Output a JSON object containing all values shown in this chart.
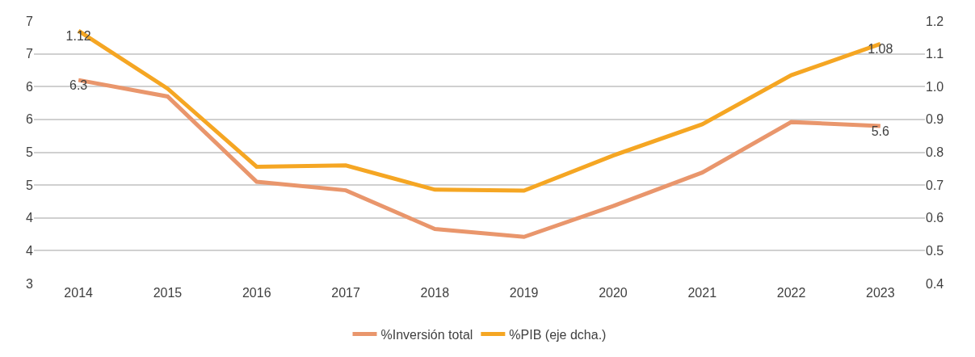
{
  "chart_data": {
    "type": "line",
    "categories": [
      "2014",
      "2015",
      "2016",
      "2017",
      "2018",
      "2019",
      "2020",
      "2021",
      "2022",
      "2023"
    ],
    "series": [
      {
        "name": "%Inversión total",
        "color": "#e9966c",
        "values": [
          6.3,
          6.05,
          4.75,
          4.62,
          4.03,
          3.91,
          4.38,
          4.89,
          5.66,
          5.6
        ],
        "value_labels": [
          "6.3",
          null,
          null,
          null,
          null,
          null,
          null,
          null,
          null,
          "5.6"
        ]
      },
      {
        "name": "%PIB (eje dcha.)",
        "color": "#f5a623",
        "axis": "y2",
        "values": [
          1.12,
          0.944,
          0.706,
          0.71,
          0.636,
          0.633,
          0.74,
          0.835,
          0.985,
          1.08
        ],
        "value_labels": [
          "1.12",
          null,
          null,
          null,
          null,
          null,
          null,
          null,
          null,
          "1.08"
        ]
      }
    ],
    "ylim": [
      3.2,
      7.2
    ],
    "yticks": [
      {
        "value": 3.2,
        "label": "3"
      },
      {
        "value": 3.7,
        "label": "4"
      },
      {
        "value": 4.2,
        "label": "4"
      },
      {
        "value": 4.7,
        "label": "5"
      },
      {
        "value": 5.2,
        "label": "5"
      },
      {
        "value": 5.7,
        "label": "6"
      },
      {
        "value": 6.2,
        "label": "6"
      },
      {
        "value": 6.7,
        "label": "7"
      },
      {
        "value": 7.2,
        "label": "7"
      }
    ],
    "y2lim": [
      0.35,
      1.15
    ],
    "y2ticks": [
      {
        "value": 0.35,
        "label": "0.4"
      },
      {
        "value": 0.45,
        "label": "0.5"
      },
      {
        "value": 0.55,
        "label": "0.6"
      },
      {
        "value": 0.65,
        "label": "0.7"
      },
      {
        "value": 0.75,
        "label": "0.8"
      },
      {
        "value": 0.85,
        "label": "0.9"
      },
      {
        "value": 0.95,
        "label": "1.0"
      },
      {
        "value": 1.05,
        "label": "1.1"
      },
      {
        "value": 1.15,
        "label": "1.2"
      }
    ],
    "grid": "y",
    "legend": "bottom",
    "marker": "none",
    "line_style": "solid"
  }
}
